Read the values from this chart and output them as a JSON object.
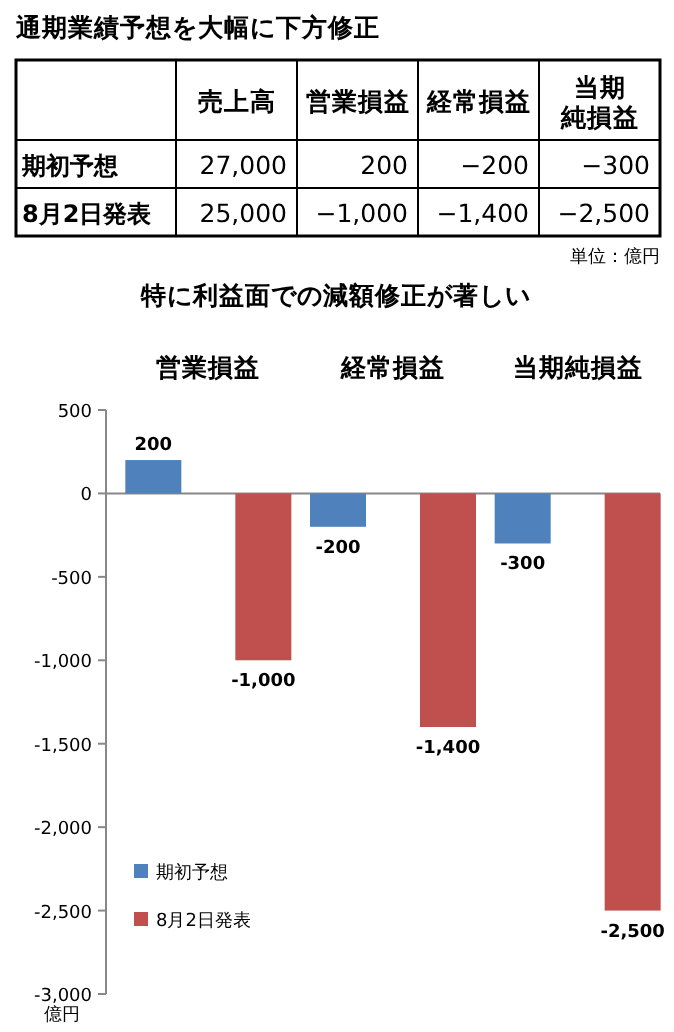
{
  "chart_data": [
    {
      "type": "heatmap",
      "title": "通期業績予想を大幅に下方修正",
      "categories": [
        "売上高",
        "営業損益",
        "経常損益",
        "当期純損益"
      ],
      "y_categories": [
        "期初予想",
        "8月2日発表"
      ],
      "cells": [
        [
          27000,
          200,
          -200,
          -300
        ],
        [
          25000,
          -1000,
          -1400,
          -2500
        ]
      ],
      "cell_labels": [
        [
          "27,000",
          "200",
          "−200",
          "−300"
        ],
        [
          "25,000",
          "−1,000",
          "−1,400",
          "−2,500"
        ]
      ],
      "annotations": [
        "単位：億円"
      ]
    },
    {
      "type": "bar",
      "title": "特に利益面での減額修正が著しい",
      "ylabel": "億円",
      "categories": [
        "営業損益",
        "経常損益",
        "当期純損益"
      ],
      "series": [
        {
          "name": "期初予想",
          "color": "#4f81bd",
          "values": [
            200,
            -200,
            -300
          ],
          "value_labels": [
            "200",
            "-200",
            "-300"
          ]
        },
        {
          "name": "8月2日発表",
          "color": "#c0504d",
          "values": [
            -1000,
            -1400,
            -2500
          ],
          "value_labels": [
            "-1,000",
            "-1,400",
            "-2,500"
          ]
        }
      ],
      "ylim": [
        -3000,
        500
      ],
      "yticks": [
        {
          "value": 500,
          "label": "500"
        },
        {
          "value": 0,
          "label": "0"
        },
        {
          "value": -500,
          "label": "-500"
        },
        {
          "value": -1000,
          "label": "-1,000"
        },
        {
          "value": -1500,
          "label": "-1,500"
        },
        {
          "value": -2000,
          "label": "-2,000"
        },
        {
          "value": -2500,
          "label": "-2,500"
        },
        {
          "value": -3000,
          "label": "-3,000"
        }
      ],
      "legend": "bottom left"
    }
  ]
}
